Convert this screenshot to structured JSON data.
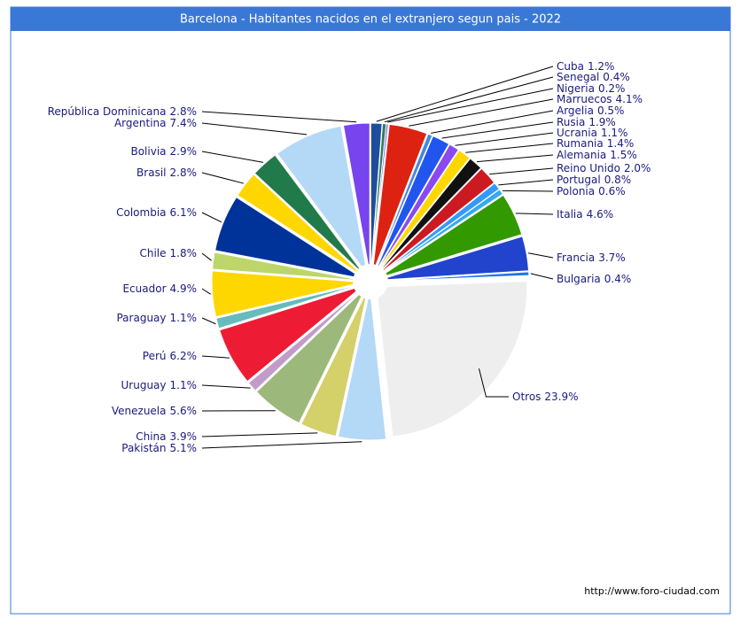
{
  "chart_data": {
    "type": "pie",
    "title": "Barcelona - Habitantes nacidos en el extranjero segun pais - 2022",
    "footer": "http://www.foro-ciudad.com",
    "categories": [
      "Cuba",
      "Senegal",
      "Nigeria",
      "Marruecos",
      "Argelia",
      "Rusia",
      "Ucrania",
      "Rumania",
      "Alemania",
      "Reino Unido",
      "Portugal",
      "Polonia",
      "Italia",
      "Francia",
      "Bulgaria",
      "Otros",
      "Pakistán",
      "China",
      "Venezuela",
      "Uruguay",
      "Perú",
      "Paraguay",
      "Ecuador",
      "Chile",
      "Colombia",
      "Brasil",
      "Bolivia",
      "Argentina",
      "República Dominicana"
    ],
    "values": [
      1.2,
      0.4,
      0.2,
      4.1,
      0.5,
      1.9,
      1.1,
      1.4,
      1.5,
      2.0,
      0.8,
      0.6,
      4.6,
      3.7,
      0.4,
      23.9,
      5.1,
      3.9,
      5.6,
      1.1,
      6.2,
      1.1,
      4.9,
      1.8,
      6.1,
      2.8,
      2.9,
      7.4,
      2.8
    ],
    "value_labels": [
      "1.2%",
      "0.4%",
      "0.2%",
      "4.1%",
      "0.5%",
      "1.9%",
      "1.1%",
      "1.4%",
      "1.5%",
      "2.0%",
      "0.8%",
      "0.6%",
      "4.6%",
      "3.7%",
      "0.4%",
      "23.9%",
      "5.1%",
      "3.9%",
      "5.6%",
      "1.1%",
      "6.2%",
      "1.1%",
      "4.9%",
      "1.8%",
      "6.1%",
      "2.8%",
      "2.9%",
      "7.4%",
      "2.8%"
    ],
    "colors": [
      "#1f4e9c",
      "#2e7d5a",
      "#7b4bd6",
      "#dd2211",
      "#4488dd",
      "#2255ee",
      "#8a4af0",
      "#ffd700",
      "#111111",
      "#cc1a22",
      "#3399ff",
      "#33aaee",
      "#339900",
      "#2244cc",
      "#2277dd",
      "#eeeeee",
      "#b3d9f7",
      "#d4d06a",
      "#9cb87a",
      "#c39bc9",
      "#ee1b35",
      "#66bbbb",
      "#ffd700",
      "#bcd66a",
      "#003399",
      "#ffd700",
      "#217a4a",
      "#b3d9f7",
      "#7744ee"
    ]
  }
}
